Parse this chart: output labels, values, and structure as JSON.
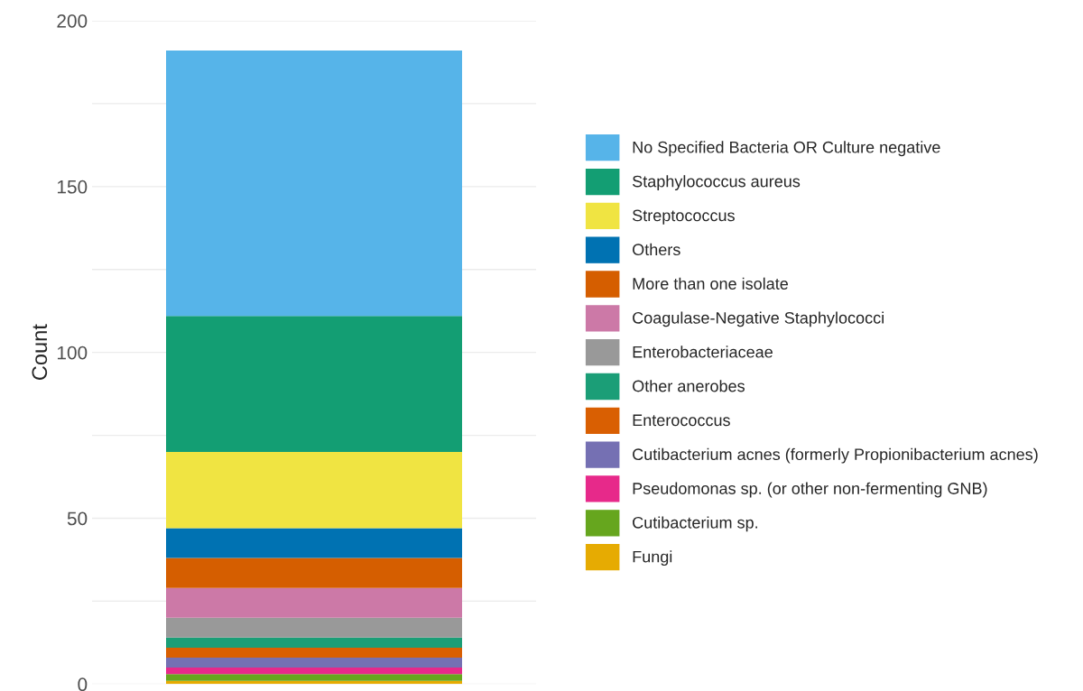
{
  "chart_data": {
    "type": "bar",
    "stacked": true,
    "ylabel": "Count",
    "categories": [
      null
    ],
    "series": [
      {
        "name": "Fungi",
        "color": "#e6ab02",
        "values": [
          1
        ]
      },
      {
        "name": "Cutibacterium sp.",
        "color": "#66a61e",
        "values": [
          2
        ]
      },
      {
        "name": "Pseudomonas sp. (or other non-fermenting GNB)",
        "color": "#e7298a",
        "values": [
          2
        ]
      },
      {
        "name": "Cutibacterium acnes (formerly Propionibacterium acnes)",
        "color": "#7570b3",
        "values": [
          3
        ]
      },
      {
        "name": "Enterococcus",
        "color": "#d95f02",
        "values": [
          3
        ]
      },
      {
        "name": "Other anerobes",
        "color": "#1b9e77",
        "values": [
          3
        ]
      },
      {
        "name": "Enterobacteriaceae",
        "color": "#999999",
        "values": [
          6
        ]
      },
      {
        "name": "Coagulase-Negative Staphylococci",
        "color": "#cc79a7",
        "values": [
          9
        ]
      },
      {
        "name": "More than one isolate",
        "color": "#d55e00",
        "values": [
          9
        ]
      },
      {
        "name": "Others",
        "color": "#0072b2",
        "values": [
          9
        ]
      },
      {
        "name": "Streptococcus",
        "color": "#f0e442",
        "values": [
          23
        ]
      },
      {
        "name": "Staphylococcus aureus",
        "color": "#139e73",
        "values": [
          41
        ]
      },
      {
        "name": "No Specified Bacteria OR Culture negative",
        "color": "#56b4e9",
        "values": [
          80
        ]
      }
    ],
    "ylim": [
      0,
      200
    ],
    "yticks": [
      0,
      {
        "value": 25,
        "label": null
      },
      50,
      {
        "value": 75,
        "label": null
      },
      100,
      {
        "value": 125,
        "label": null
      },
      150,
      {
        "value": 175,
        "label": null
      },
      200
    ],
    "grid": "y",
    "legend": "right"
  }
}
